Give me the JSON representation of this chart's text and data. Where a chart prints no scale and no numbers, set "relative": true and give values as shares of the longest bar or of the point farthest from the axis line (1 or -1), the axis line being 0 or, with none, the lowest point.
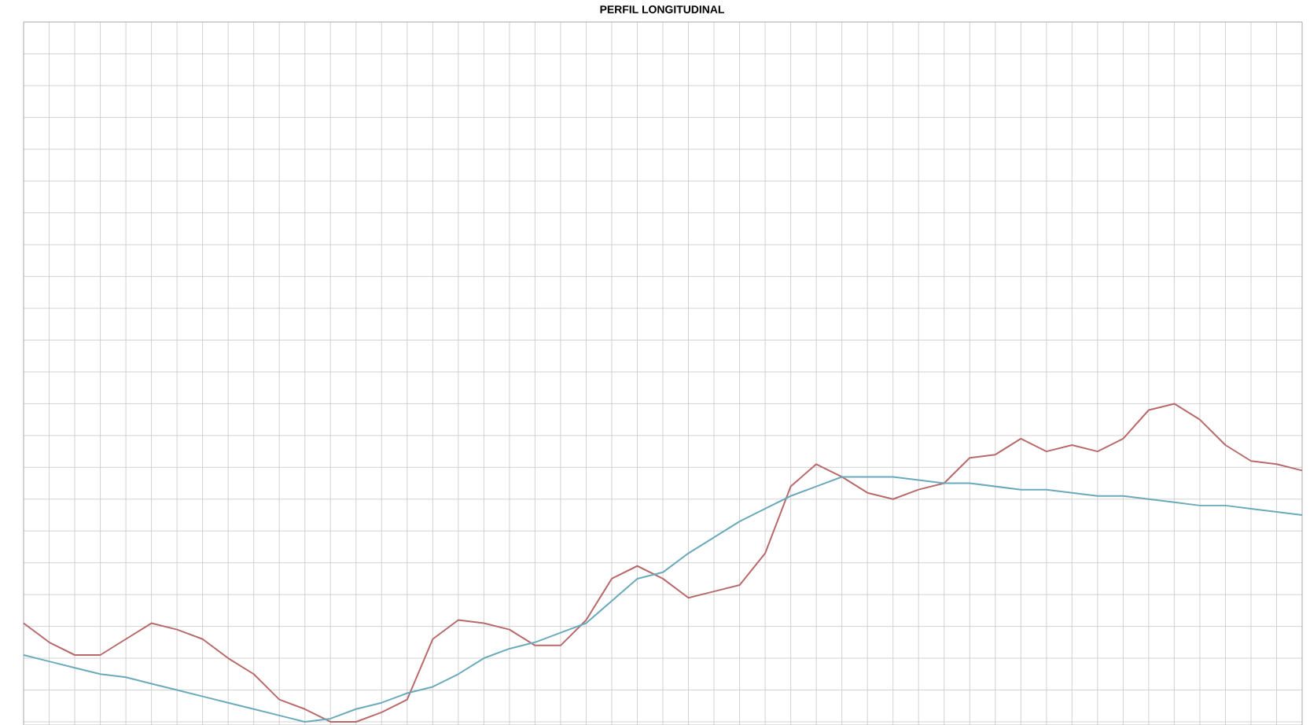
{
  "chart_data": {
    "type": "line",
    "title": "PERFIL LONGITUDINAL",
    "relative": true,
    "grid": true,
    "categories": [
      null,
      null,
      null,
      null,
      null,
      null,
      null,
      null,
      null,
      null,
      null,
      null,
      null,
      null,
      null,
      null,
      null,
      null,
      null,
      null,
      null,
      null,
      null,
      null,
      null,
      null,
      null,
      null,
      null,
      null,
      null,
      null,
      null,
      null,
      null,
      null,
      null,
      null,
      null,
      null,
      null,
      null,
      null,
      null,
      null,
      null,
      null,
      null,
      null,
      null,
      null
    ],
    "series": [
      {
        "color": "#b86a6a",
        "values": [
          0.31,
          0.25,
          0.21,
          0.21,
          0.26,
          0.31,
          0.29,
          0.26,
          0.2,
          0.15,
          0.07,
          0.04,
          0,
          0,
          0.03,
          0.07,
          0.26,
          0.32,
          0.31,
          0.29,
          0.24,
          0.24,
          0.32,
          0.45,
          0.49,
          0.45,
          0.39,
          0.41,
          0.43,
          0.53,
          0.74,
          0.81,
          0.77,
          0.72,
          0.7,
          0.73,
          0.75,
          0.83,
          0.84,
          0.89,
          0.85,
          0.87,
          0.85,
          0.89,
          0.98,
          1.0,
          0.95,
          0.87,
          0.82,
          0.81,
          0.79
        ]
      },
      {
        "color": "#6aaabb",
        "values": [
          0.21,
          0.19,
          0.17,
          0.15,
          0.14,
          0.12,
          0.1,
          0.08,
          0.06,
          0.04,
          0.02,
          0.0,
          0.01,
          0.04,
          0.06,
          0.09,
          0.11,
          0.15,
          0.2,
          0.23,
          0.25,
          0.28,
          0.31,
          0.38,
          0.45,
          0.47,
          0.53,
          0.58,
          0.63,
          0.67,
          0.71,
          0.74,
          0.77,
          0.77,
          0.77,
          0.76,
          0.75,
          0.75,
          0.74,
          0.73,
          0.73,
          0.72,
          0.71,
          0.71,
          0.7,
          0.69,
          0.68,
          0.68,
          0.67,
          0.66,
          0.65
        ]
      }
    ]
  }
}
